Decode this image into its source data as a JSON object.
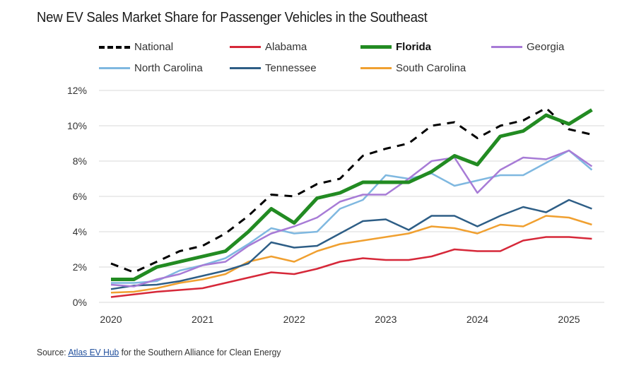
{
  "chart_data": {
    "type": "line",
    "title": "New EV Sales Market Share for Passenger Vehicles in the Southeast",
    "xlabel": "",
    "ylabel": "",
    "ylim": [
      0,
      12
    ],
    "y_ticks": [
      "0%",
      "2%",
      "4%",
      "6%",
      "8%",
      "10%",
      "12%"
    ],
    "y_tick_values": [
      0,
      2,
      4,
      6,
      8,
      10,
      12
    ],
    "x_tick_labels": [
      "2020",
      "2021",
      "2022",
      "2023",
      "2024",
      "2025"
    ],
    "x_tick_index": [
      0,
      4,
      8,
      12,
      16,
      20
    ],
    "x": [
      "2020 Q1",
      "2020 Q2",
      "2020 Q3",
      "2020 Q4",
      "2021 Q1",
      "2021 Q2",
      "2021 Q3",
      "2021 Q4",
      "2022 Q1",
      "2022 Q2",
      "2022 Q3",
      "2022 Q4",
      "2023 Q1",
      "2023 Q2",
      "2023 Q3",
      "2023 Q4",
      "2024 Q1",
      "2024 Q2",
      "2024 Q3",
      "2024 Q4",
      "2025 Q1",
      "2025 Q2"
    ],
    "grid": true,
    "legend_position": "top",
    "series": [
      {
        "name": "National",
        "color": "#000000",
        "dashed": true,
        "bold": false,
        "width": 3,
        "values": [
          2.2,
          1.7,
          2.3,
          2.9,
          3.2,
          3.9,
          4.9,
          6.1,
          6.0,
          6.7,
          7.0,
          8.3,
          8.7,
          9.0,
          10.0,
          10.2,
          9.3,
          10.0,
          10.3,
          11.0,
          9.8,
          9.5
        ]
      },
      {
        "name": "Alabama",
        "color": "#d62839",
        "dashed": false,
        "bold": false,
        "width": 2.5,
        "values": [
          0.3,
          0.45,
          0.6,
          0.7,
          0.8,
          1.1,
          1.4,
          1.7,
          1.6,
          1.9,
          2.3,
          2.5,
          2.4,
          2.4,
          2.6,
          3.0,
          2.9,
          2.9,
          3.5,
          3.7,
          3.7,
          3.6
        ]
      },
      {
        "name": "Florida",
        "color": "#228b22",
        "dashed": false,
        "bold": true,
        "width": 5,
        "values": [
          1.3,
          1.3,
          2.0,
          2.3,
          2.6,
          2.9,
          4.0,
          5.3,
          4.5,
          5.9,
          6.2,
          6.8,
          6.8,
          6.8,
          7.4,
          8.3,
          7.8,
          9.4,
          9.7,
          10.6,
          10.1,
          10.9
        ]
      },
      {
        "name": "Georgia",
        "color": "#a77bd6",
        "dashed": false,
        "bold": false,
        "width": 2.5,
        "values": [
          1.0,
          0.9,
          1.3,
          1.6,
          2.1,
          2.3,
          3.2,
          3.9,
          4.3,
          4.8,
          5.7,
          6.1,
          6.1,
          7.0,
          8.0,
          8.2,
          6.2,
          7.5,
          8.2,
          8.1,
          8.6,
          7.7
        ]
      },
      {
        "name": "North Carolina",
        "color": "#7fb8e0",
        "dashed": false,
        "bold": false,
        "width": 2.5,
        "values": [
          1.1,
          1.1,
          1.2,
          1.8,
          2.1,
          2.5,
          3.3,
          4.2,
          3.9,
          4.0,
          5.3,
          5.8,
          7.2,
          7.0,
          7.3,
          6.6,
          6.9,
          7.2,
          7.2,
          7.9,
          8.6,
          7.5
        ]
      },
      {
        "name": "Tennessee",
        "color": "#2e5e86",
        "dashed": false,
        "bold": false,
        "width": 2.5,
        "values": [
          0.75,
          0.95,
          1.0,
          1.2,
          1.5,
          1.8,
          2.2,
          3.4,
          3.1,
          3.2,
          3.9,
          4.6,
          4.7,
          4.1,
          4.9,
          4.9,
          4.3,
          4.9,
          5.4,
          5.1,
          5.8,
          5.3
        ]
      },
      {
        "name": "South Carolina",
        "color": "#f0a030",
        "dashed": false,
        "bold": false,
        "width": 2.5,
        "values": [
          0.55,
          0.6,
          0.8,
          1.1,
          1.3,
          1.6,
          2.3,
          2.6,
          2.3,
          2.9,
          3.3,
          3.5,
          3.7,
          3.9,
          4.3,
          4.2,
          3.9,
          4.4,
          4.3,
          4.9,
          4.8,
          4.4
        ]
      }
    ]
  },
  "source": {
    "prefix": "Source: ",
    "link_text": "Atlas EV Hub",
    "suffix": " for the Southern Alliance for Clean Energy"
  }
}
